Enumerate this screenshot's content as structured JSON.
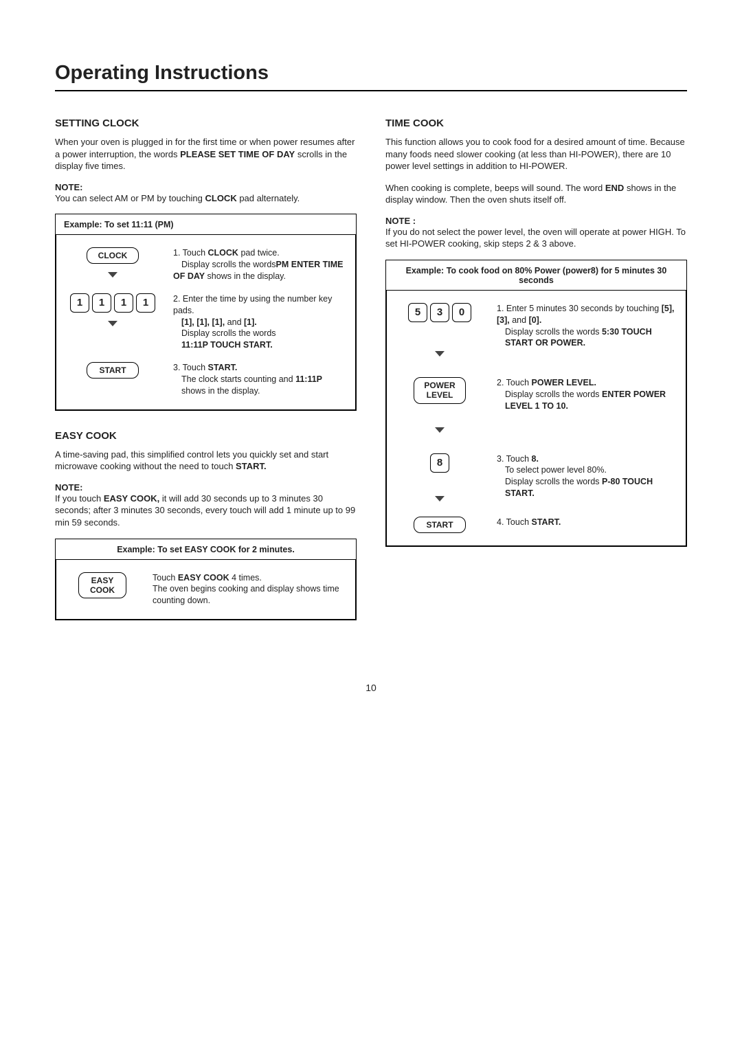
{
  "pageTitle": "Operating Instructions",
  "pageNumber": "10",
  "left": {
    "settingClock": {
      "heading": "SETTING CLOCK",
      "intro_pre": "When your oven is plugged in for the first time or when power resumes after a power interruption, the words ",
      "intro_bold": "PLEASE SET TIME OF DAY",
      "intro_post": " scrolls in the display five times.",
      "noteLabel": "NOTE:",
      "noteText_pre": "You can select AM or PM by touching ",
      "noteText_bold": "CLOCK",
      "noteText_post": " pad alternately.",
      "exampleHeader": "Example: To set 11:11 (PM)",
      "step1": {
        "btn": "CLOCK",
        "a": "1. Touch ",
        "b": "CLOCK",
        "c": " pad twice.",
        "d": "Display scrolls the words ",
        "e": "PM ENTER TIME OF DAY",
        "f": " shows in the display."
      },
      "step2": {
        "keys": [
          "1",
          "1",
          "1",
          "1"
        ],
        "a": "2. Enter the time by using the number key pads.",
        "b": "[1], [1], [1],",
        "c": " and ",
        "d": "[1].",
        "e": "Display scrolls the words ",
        "f": "11:11P TOUCH START."
      },
      "step3": {
        "btn": "START",
        "a": "3. Touch ",
        "b": "START.",
        "c": "The clock starts counting and ",
        "d": "11:11P",
        "e": " shows in the display."
      }
    },
    "easyCook": {
      "heading": "EASY COOK",
      "intro_pre": "A time-saving pad, this simplified control lets you quickly set and start microwave cooking without the need to touch ",
      "intro_bold": "START.",
      "noteLabel": "NOTE:",
      "noteText_pre": "If you touch ",
      "noteText_bold": "EASY COOK,",
      "noteText_post": " it will add 30 seconds up to 3 minutes 30 seconds; after 3 minutes 30 seconds, every touch will add 1 minute up to 99 min 59 seconds.",
      "exampleHeader": "Example: To set EASY COOK for 2 minutes.",
      "step": {
        "btn": "EASY COOK",
        "a": "Touch ",
        "b": "EASY COOK",
        "c": " 4 times.",
        "d": "The oven begins cooking and display shows time counting down."
      }
    }
  },
  "right": {
    "timeCook": {
      "heading": "TIME COOK",
      "p1": "This function allows you to cook food for a desired amount of time. Because many foods need slower cooking (at less than HI-POWER), there are 10 power level settings in addition to HI-POWER.",
      "p2_pre": "When cooking is complete, beeps will sound. The word ",
      "p2_bold": "END",
      "p2_post": " shows in the display window. Then the oven shuts itself off.",
      "noteLabel": "NOTE :",
      "noteText": "If you do not select the power level, the oven will operate at power HIGH. To set HI-POWER cooking, skip steps 2 & 3 above.",
      "exampleHeader": "Example: To cook food on 80% Power (power8) for 5 minutes 30 seconds",
      "step1": {
        "keys": [
          "5",
          "3",
          "0"
        ],
        "a": "1. Enter 5 minutes 30 seconds by touching ",
        "b": "[5], [3],",
        "c": " and ",
        "d": "[0].",
        "e": "Display scrolls the words ",
        "f": "5:30 TOUCH START OR POWER."
      },
      "step2": {
        "btn": "POWER LEVEL",
        "a": "2. Touch ",
        "b": "POWER LEVEL.",
        "c": "Display scrolls the words ",
        "d": "ENTER POWER LEVEL 1 TO 10."
      },
      "step3": {
        "key": "8",
        "a": "3. Touch ",
        "b": "8.",
        "c": "To select power level 80%.",
        "d": "Display scrolls the words ",
        "e": "P-80 TOUCH START."
      },
      "step4": {
        "btn": "START",
        "a": "4. Touch ",
        "b": "START."
      }
    }
  }
}
